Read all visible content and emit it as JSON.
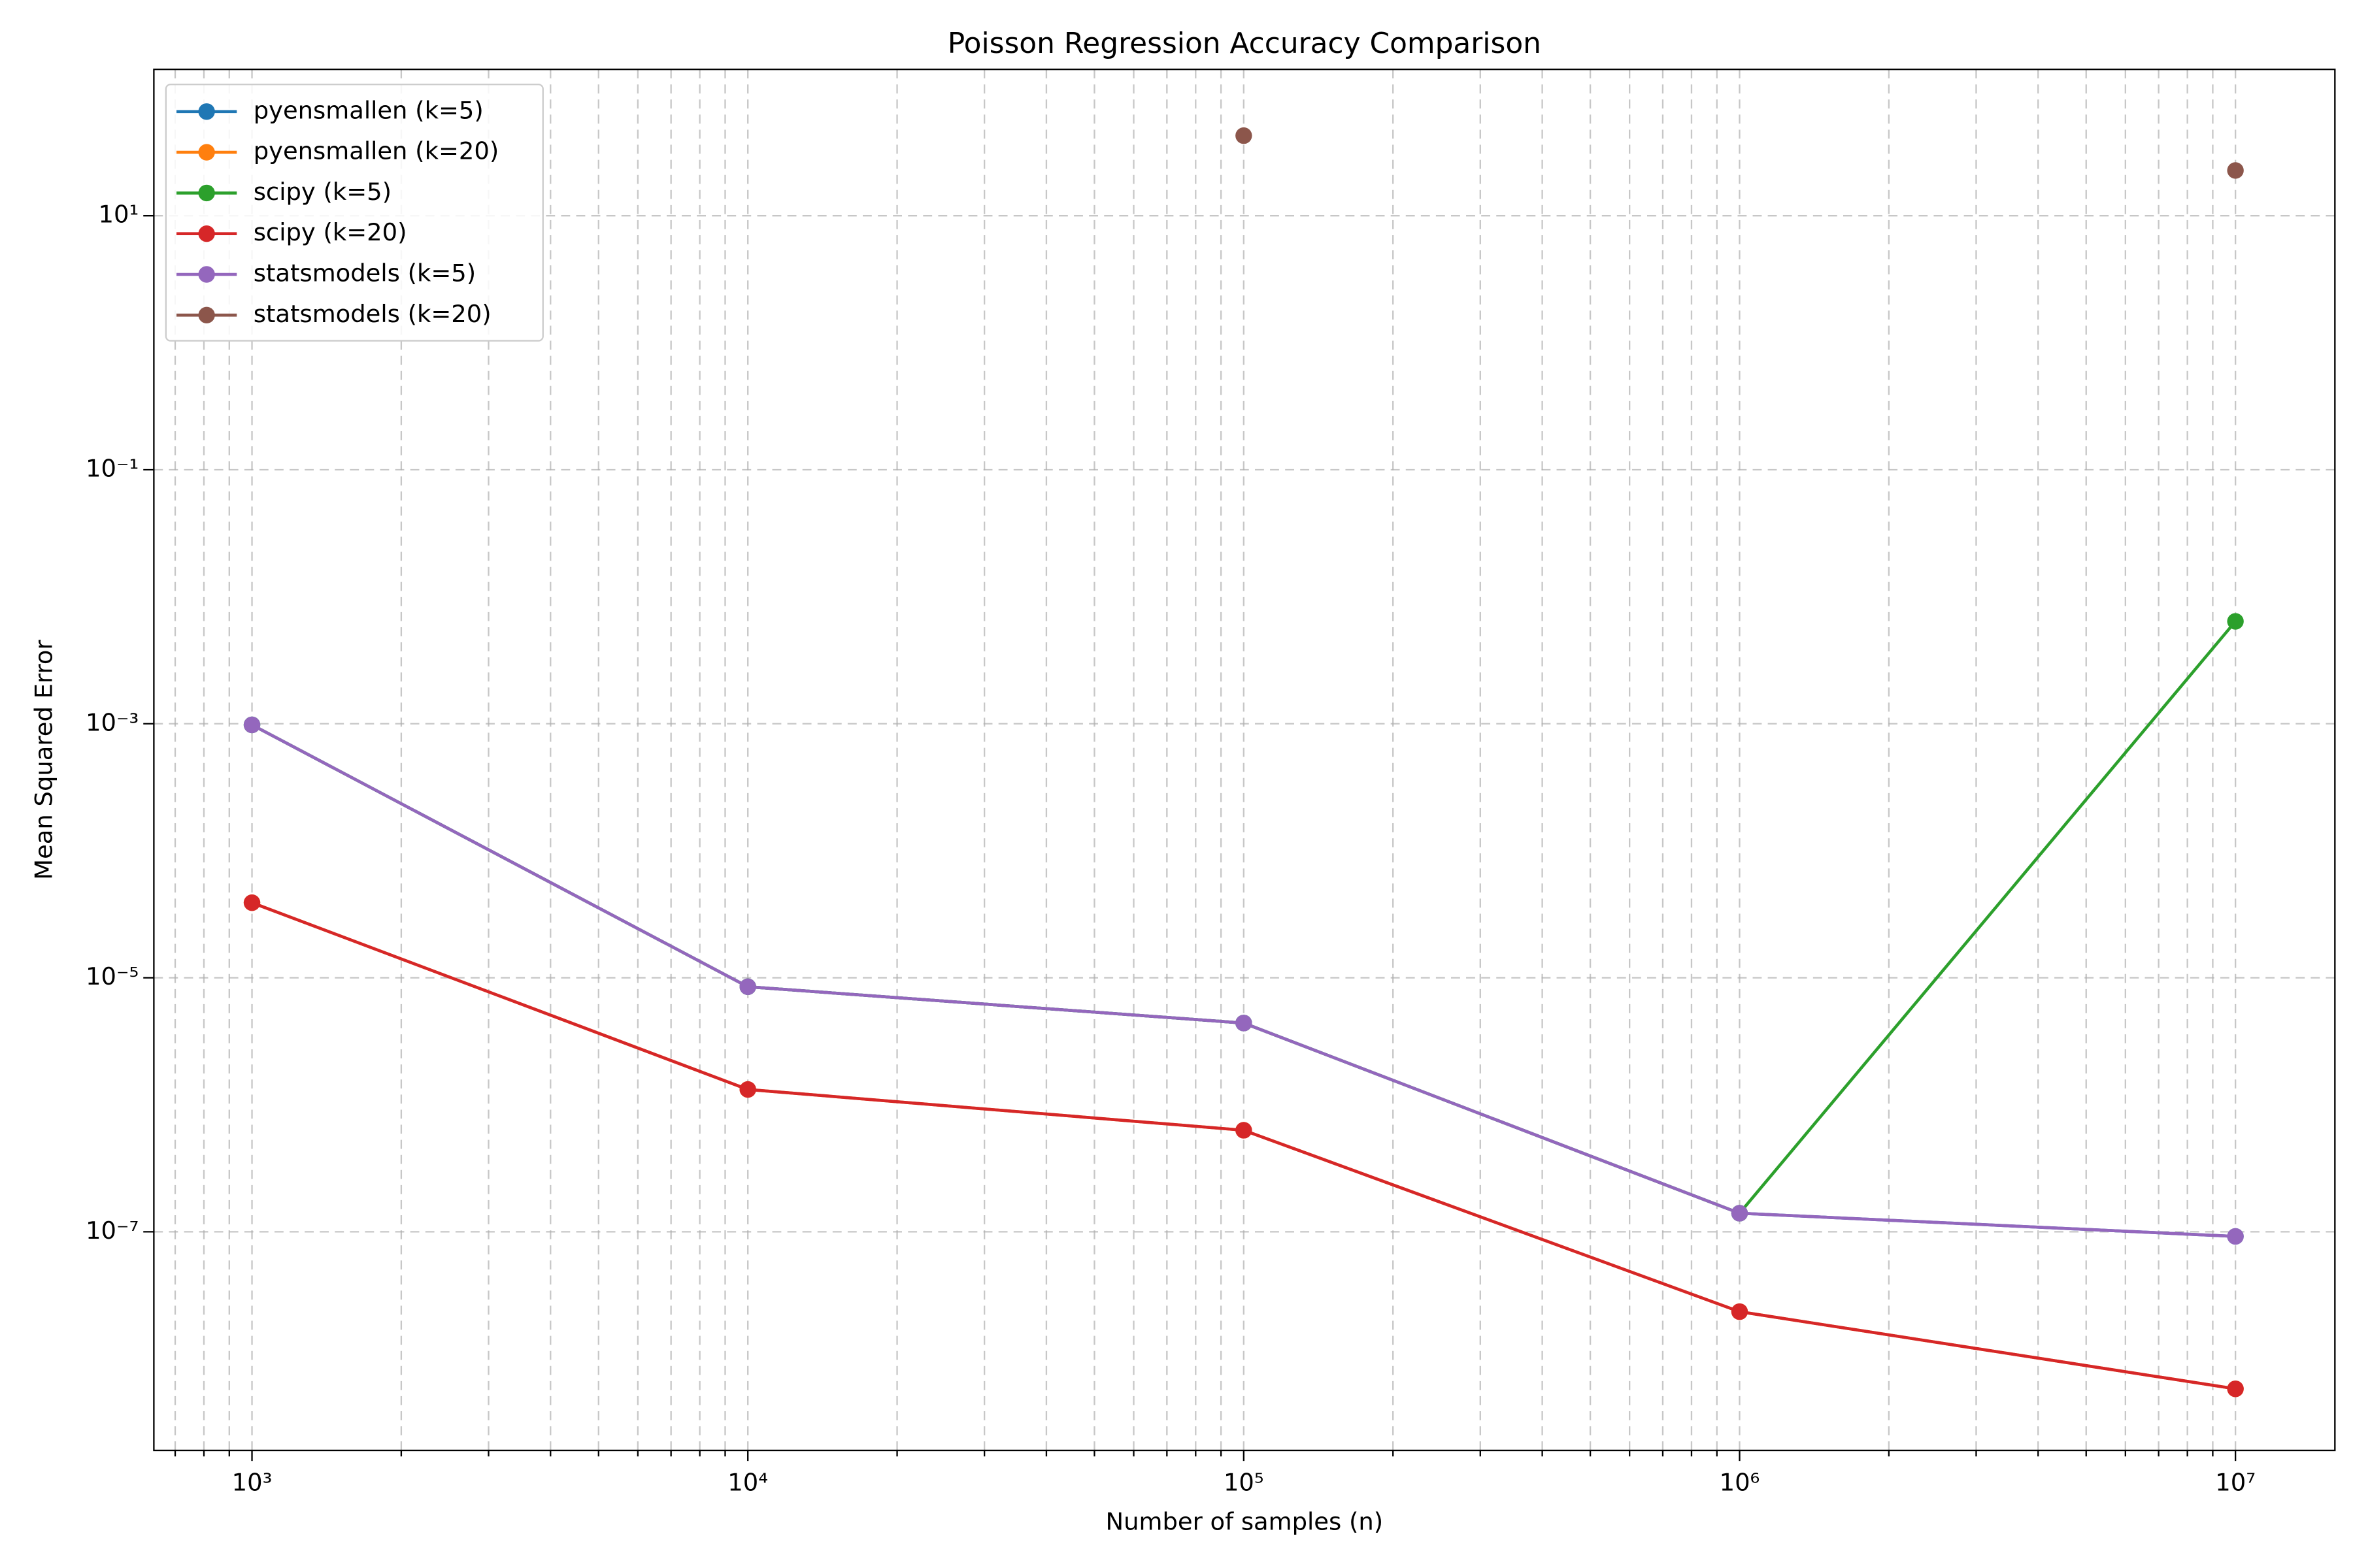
{
  "chart_data": {
    "type": "line",
    "title": "Poisson Regression Accuracy Comparison",
    "x_label": "Number of samples (n)",
    "y_label": "Mean Squared Error",
    "x": [
      1000,
      10000,
      100000,
      1000000,
      10000000
    ],
    "log_x": true,
    "log_y": true,
    "grid": true,
    "legend": "upper left",
    "xlim": [
      634,
      15870000
    ],
    "ylim": [
      1.9e-09,
      142
    ],
    "xticks": [
      {
        "value": 1000,
        "label": "10³"
      },
      {
        "value": 10000,
        "label": "10⁴"
      },
      {
        "value": 100000,
        "label": "10⁵"
      },
      {
        "value": 1000000,
        "label": "10⁶"
      },
      {
        "value": 10000000,
        "label": "10⁷"
      }
    ],
    "xticks_minor": [
      700,
      800,
      900,
      2000,
      3000,
      4000,
      5000,
      6000,
      7000,
      8000,
      9000,
      20000,
      30000,
      40000,
      50000,
      60000,
      70000,
      80000,
      90000,
      200000,
      300000,
      400000,
      500000,
      600000,
      700000,
      800000,
      900000,
      2000000,
      3000000,
      4000000,
      5000000,
      6000000,
      7000000,
      8000000,
      9000000
    ],
    "yticks": [
      {
        "value": 1e-07,
        "label": "10⁻⁷"
      },
      {
        "value": 1e-05,
        "label": "10⁻⁵"
      },
      {
        "value": 0.001,
        "label": "10⁻³"
      },
      {
        "value": 0.1,
        "label": "10⁻¹"
      },
      {
        "value": 10,
        "label": "10¹"
      }
    ],
    "series": [
      {
        "name": "pyensmallen (k=5)",
        "color": "#1f77b4",
        "values": [
          0.00098,
          8.5e-06,
          4.4e-06,
          1.4e-07,
          9.2e-08
        ]
      },
      {
        "name": "pyensmallen (k=20)",
        "color": "#ff7f0e",
        "values": [
          3.9e-05,
          1.32e-06,
          6.3e-07,
          2.35e-08,
          5.8e-09
        ]
      },
      {
        "name": "scipy (k=5)",
        "color": "#2ca02c",
        "values": [
          0.00098,
          8.5e-06,
          4.4e-06,
          1.4e-07,
          0.0064
        ]
      },
      {
        "name": "scipy (k=20)",
        "color": "#d62728",
        "values": [
          3.9e-05,
          1.32e-06,
          6.3e-07,
          2.35e-08,
          5.8e-09
        ]
      },
      {
        "name": "statsmodels (k=5)",
        "color": "#9467bd",
        "values": [
          0.00098,
          8.5e-06,
          4.4e-06,
          1.4e-07,
          9.2e-08
        ]
      },
      {
        "name": "statsmodels (k=20)",
        "color": "#8c564b",
        "values": [
          null,
          null,
          42.7,
          null,
          22.7
        ]
      }
    ]
  }
}
